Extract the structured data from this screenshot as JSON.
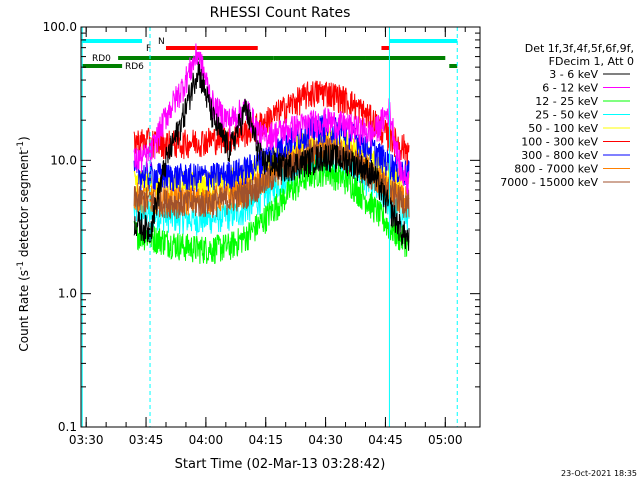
{
  "chart_data": {
    "type": "line",
    "title": "RHESSI Count Rates",
    "xlabel": "Start Time (02-Mar-13 03:28:42)",
    "ylabel": "Count Rate (s",
    "ylabel_sup1": "-1",
    "ylabel_mid": " detector segment",
    "ylabel_sup2": "-1",
    "ylabel_end": ")",
    "y_scale": "log",
    "ylim": [
      0.1,
      100.0
    ],
    "xlim": [
      "03:28:42",
      "05:08:42"
    ],
    "x_ticks": [
      "03:30",
      "03:45",
      "04:00",
      "04:15",
      "04:30",
      "04:45",
      "05:00"
    ],
    "y_ticks": [
      "100.0",
      "10.0",
      "1.0",
      "0.1"
    ],
    "footer_date": "23-Oct-2021 18:35",
    "legend_header": [
      "Det 1f,3f,4f,5f,6f,9f,",
      "FDecim 1, Att 0"
    ],
    "series": [
      {
        "name": "3 - 6 keV",
        "color": "#000000",
        "x": [
          "03:42",
          "03:46",
          "03:50",
          "03:54",
          "03:58",
          "04:02",
          "04:06",
          "04:10",
          "04:14",
          "04:20",
          "04:26",
          "04:30",
          "04:36",
          "04:42",
          "04:46",
          "04:49",
          "04:51"
        ],
        "y": [
          3.5,
          3.0,
          10,
          20,
          50,
          20,
          12,
          25,
          10,
          9,
          10,
          11,
          10,
          8,
          4.5,
          3.0,
          2.5
        ]
      },
      {
        "name": "6 - 12 keV",
        "color": "#ff00ff",
        "x": [
          "03:42",
          "03:46",
          "03:50",
          "03:54",
          "03:58",
          "04:02",
          "04:06",
          "04:10",
          "04:14",
          "04:20",
          "04:26",
          "04:30",
          "04:36",
          "04:42",
          "04:46",
          "04:49",
          "04:51"
        ],
        "y": [
          10,
          11,
          22,
          35,
          65,
          25,
          20,
          25,
          15,
          17,
          19,
          20,
          18,
          16,
          24,
          8,
          7
        ]
      },
      {
        "name": "12 - 25 keV",
        "color": "#00ff00",
        "x": [
          "03:42",
          "03:46",
          "03:50",
          "03:54",
          "03:58",
          "04:02",
          "04:06",
          "04:10",
          "04:14",
          "04:20",
          "04:26",
          "04:30",
          "04:36",
          "04:42",
          "04:46",
          "04:49",
          "04:51"
        ],
        "y": [
          2.9,
          2.7,
          2.5,
          2.3,
          2.2,
          2.2,
          2.3,
          2.7,
          3.5,
          5.5,
          8,
          8.5,
          7,
          4.5,
          3.2,
          2.6,
          2.4
        ]
      },
      {
        "name": "25 - 50 keV",
        "color": "#00ffff",
        "x": [
          "03:42",
          "03:46",
          "03:50",
          "03:54",
          "03:58",
          "04:02",
          "04:06",
          "04:10",
          "04:14",
          "04:20",
          "04:26",
          "04:30",
          "04:36",
          "04:42",
          "04:46",
          "04:49",
          "04:51"
        ],
        "y": [
          4.2,
          4.0,
          3.8,
          3.7,
          3.6,
          3.7,
          3.9,
          4.3,
          5.3,
          7.5,
          10,
          10.5,
          9,
          6.5,
          4.8,
          4.0,
          3.8
        ]
      },
      {
        "name": "50 - 100 keV",
        "color": "#ffff00",
        "x": [
          "03:42",
          "03:46",
          "03:50",
          "03:54",
          "03:58",
          "04:02",
          "04:06",
          "04:10",
          "04:14",
          "04:20",
          "04:26",
          "04:30",
          "04:36",
          "04:42",
          "04:46",
          "04:49",
          "04:51"
        ],
        "y": [
          7,
          6.8,
          6.7,
          6.6,
          6.6,
          6.7,
          7,
          7.6,
          9,
          11.5,
          14,
          14.5,
          13,
          10,
          8,
          7.2,
          7
        ]
      },
      {
        "name": "100 - 300 keV",
        "color": "#ff0000",
        "x": [
          "03:42",
          "03:46",
          "03:50",
          "03:54",
          "03:58",
          "04:02",
          "04:06",
          "04:10",
          "04:14",
          "04:20",
          "04:26",
          "04:30",
          "04:36",
          "04:42",
          "04:46",
          "04:49",
          "04:51"
        ],
        "y": [
          14,
          14,
          13.5,
          13.5,
          14,
          14.5,
          15,
          16.5,
          19,
          25,
          32,
          33,
          28,
          20,
          15,
          13,
          12
        ]
      },
      {
        "name": "300 - 800 keV",
        "color": "#0000ff",
        "x": [
          "03:42",
          "03:46",
          "03:50",
          "03:54",
          "03:58",
          "04:02",
          "04:06",
          "04:10",
          "04:14",
          "04:20",
          "04:26",
          "04:30",
          "04:36",
          "04:42",
          "04:46",
          "04:49",
          "04:51"
        ],
        "y": [
          8,
          7.8,
          7.7,
          7.6,
          7.6,
          7.7,
          8,
          8.6,
          10,
          13.5,
          17,
          18,
          16,
          12,
          9.5,
          8.3,
          8
        ]
      },
      {
        "name": "800 - 7000 keV",
        "color": "#ff8000",
        "x": [
          "03:42",
          "03:46",
          "03:50",
          "03:54",
          "03:58",
          "04:02",
          "04:06",
          "04:10",
          "04:14",
          "04:20",
          "04:26",
          "04:30",
          "04:36",
          "04:42",
          "04:46",
          "04:49",
          "04:51"
        ],
        "y": [
          5.5,
          5.3,
          5.2,
          5.1,
          5.1,
          5.2,
          5.5,
          6,
          7,
          9.5,
          12,
          12.5,
          11,
          8,
          6.2,
          5.3,
          5
        ]
      },
      {
        "name": "7000 - 15000 keV",
        "color": "#a0522d",
        "x": [
          "03:42",
          "03:46",
          "03:50",
          "03:54",
          "03:58",
          "04:02",
          "04:06",
          "04:10",
          "04:14",
          "04:20",
          "04:26",
          "04:30",
          "04:36",
          "04:42",
          "04:46",
          "04:49",
          "04:51"
        ],
        "y": [
          5.2,
          5.0,
          4.9,
          4.8,
          4.8,
          4.9,
          5.2,
          5.7,
          6.7,
          9,
          11.5,
          12,
          10.5,
          7.6,
          5.9,
          5.0,
          4.8
        ]
      }
    ],
    "state_bars": [
      {
        "label": "N",
        "color": "#00ffff",
        "segments": [
          [
            "03:29",
            "03:44"
          ],
          [
            "04:46",
            "05:03"
          ]
        ]
      },
      {
        "label": "F",
        "color": "#ff0000",
        "segments": [
          [
            "03:50",
            "04:13"
          ],
          [
            "04:44",
            "04:46"
          ]
        ]
      },
      {
        "label": "RD0",
        "color": "#008000",
        "segments": [
          [
            "03:38",
            "04:17"
          ],
          [
            "04:17",
            "04:40"
          ],
          [
            "04:40",
            "05:00"
          ]
        ]
      },
      {
        "label": "RD6",
        "color": "#008000",
        "segments": [
          [
            "03:29",
            "03:39"
          ],
          [
            "05:01",
            "05:03"
          ]
        ]
      }
    ],
    "vlines": [
      {
        "x": "03:29",
        "color": "#00ffff",
        "style": "solid"
      },
      {
        "x": "03:46",
        "color": "#00ffff",
        "style": "dashed"
      },
      {
        "x": "04:46",
        "color": "#00ffff",
        "style": "solid"
      },
      {
        "x": "05:03",
        "color": "#00ffff",
        "style": "dashed"
      }
    ]
  }
}
